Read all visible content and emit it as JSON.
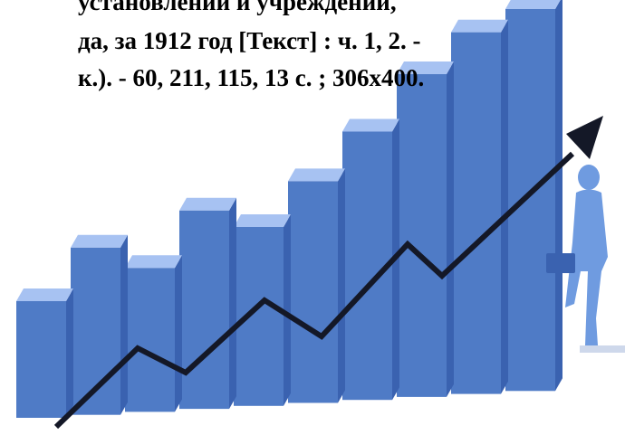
{
  "text": {
    "line1": "установлений и учреждений,",
    "line2": "да, за 1912 год [Текст] : ч.  1, 2. -",
    "line3": "к.). - 60, 211, 115, 13 с. ; 306x400."
  },
  "illustration": {
    "icon": "business-growth-bar-chart-illustration",
    "bar_count": 10,
    "bar_heights_relative": [
      0.3,
      0.43,
      0.37,
      0.51,
      0.46,
      0.57,
      0.69,
      0.83,
      0.93,
      1.0
    ],
    "figure": "businessman-figure-with-briefcase",
    "colors": {
      "bar_front": "#4f7bc6",
      "bar_side": "#3a62b0",
      "bar_top": "#a7c2f2",
      "arrow": "#141827",
      "figure": "#6f9be0"
    }
  }
}
